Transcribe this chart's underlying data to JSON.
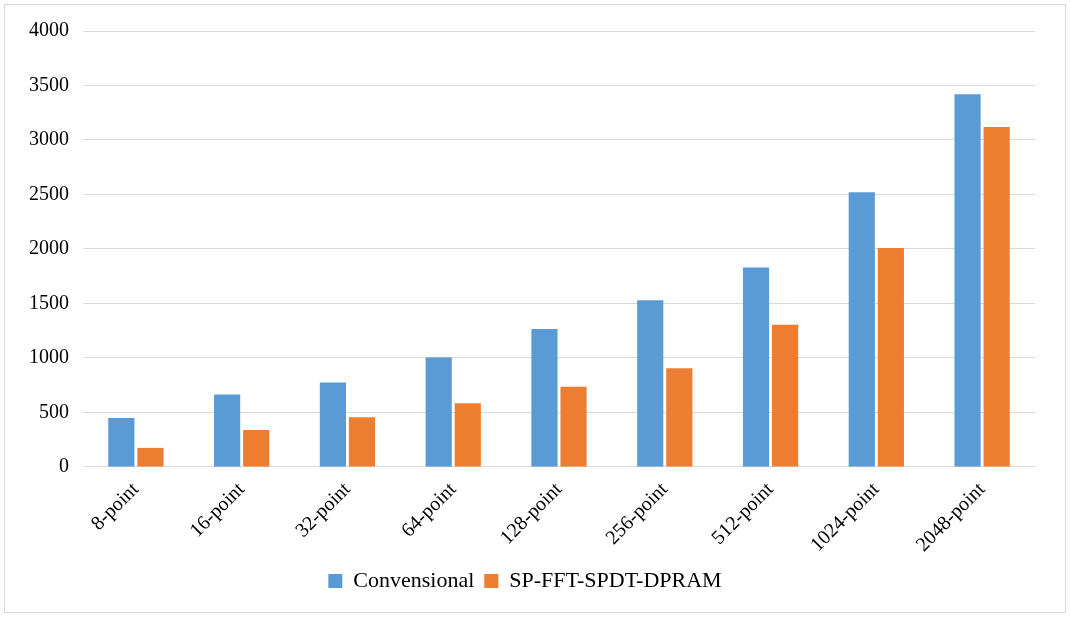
{
  "chart_data": {
    "type": "bar",
    "categories": [
      "8-point",
      "16-point",
      "32-point",
      "64-point",
      "128-point",
      "256-point",
      "512-point",
      "1024-point",
      "2048-point"
    ],
    "series": [
      {
        "name": "Convensional",
        "color": "#5b9bd5",
        "values": [
          450,
          665,
          775,
          1005,
          1265,
          1530,
          1830,
          2520,
          3420
        ]
      },
      {
        "name": "SP-FFT-SPDT-DPRAM",
        "color": "#ed7d31",
        "values": [
          175,
          340,
          455,
          585,
          735,
          905,
          1305,
          2010,
          3120
        ]
      }
    ],
    "ylim": [
      0,
      4000
    ],
    "yticks": [
      0,
      500,
      1000,
      1500,
      2000,
      2500,
      3000,
      3500,
      4000
    ],
    "grid": "y",
    "legend": "bottom"
  }
}
